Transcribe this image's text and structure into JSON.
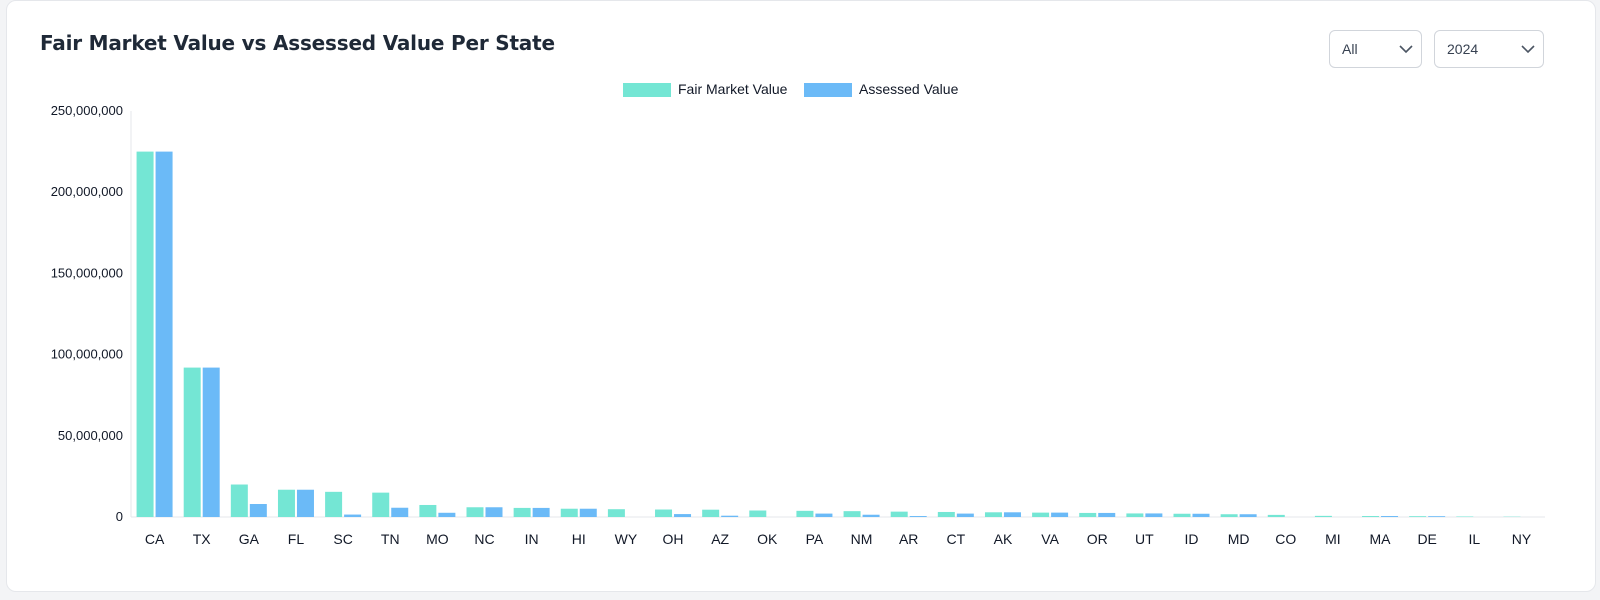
{
  "title": "Fair Market Value vs Assessed Value Per State",
  "filters": {
    "type": {
      "value": "All",
      "icon": "chevron-down-icon"
    },
    "year": {
      "value": "2024",
      "icon": "chevron-down-icon"
    }
  },
  "colors": {
    "fair_market": "#74e6d4",
    "assessed": "#6bbaf7"
  },
  "chart_data": {
    "type": "bar",
    "title": "Fair Market Value vs Assessed Value Per State",
    "xlabel": "",
    "ylabel": "",
    "ylim": [
      0,
      250000000
    ],
    "yticks": [
      {
        "value": 0,
        "label": "0"
      },
      {
        "value": 50000000,
        "label": "50,000,000"
      },
      {
        "value": 100000000,
        "label": "100,000,000"
      },
      {
        "value": 150000000,
        "label": "150,000,000"
      },
      {
        "value": 200000000,
        "label": "200,000,000"
      },
      {
        "value": 250000000,
        "label": "250,000,000"
      }
    ],
    "legend_position": "top-center",
    "grid": false,
    "categories": [
      "CA",
      "TX",
      "GA",
      "FL",
      "SC",
      "TN",
      "MO",
      "NC",
      "IN",
      "HI",
      "WY",
      "OH",
      "AZ",
      "OK",
      "PA",
      "NM",
      "AR",
      "CT",
      "AK",
      "VA",
      "OR",
      "UT",
      "ID",
      "MD",
      "CO",
      "MI",
      "MA",
      "DE",
      "IL",
      "NY"
    ],
    "series": [
      {
        "name": "Fair Market Value",
        "values": [
          225000000,
          92000000,
          20000000,
          16800000,
          15500000,
          15000000,
          7400000,
          6000000,
          5600000,
          5100000,
          4800000,
          4600000,
          4500000,
          4000000,
          3800000,
          3600000,
          3300000,
          3100000,
          2900000,
          2700000,
          2500000,
          2200000,
          2000000,
          1700000,
          1300000,
          700000,
          600000,
          500000,
          300000,
          200000
        ]
      },
      {
        "name": "Assessed Value",
        "values": [
          225000000,
          92000000,
          8000000,
          16800000,
          1500000,
          5700000,
          2600000,
          6000000,
          5600000,
          5100000,
          0,
          1800000,
          800000,
          0,
          2100000,
          1400000,
          600000,
          2100000,
          2900000,
          2700000,
          2500000,
          2200000,
          2000000,
          1700000,
          0,
          0,
          600000,
          500000,
          0,
          0
        ]
      }
    ]
  }
}
